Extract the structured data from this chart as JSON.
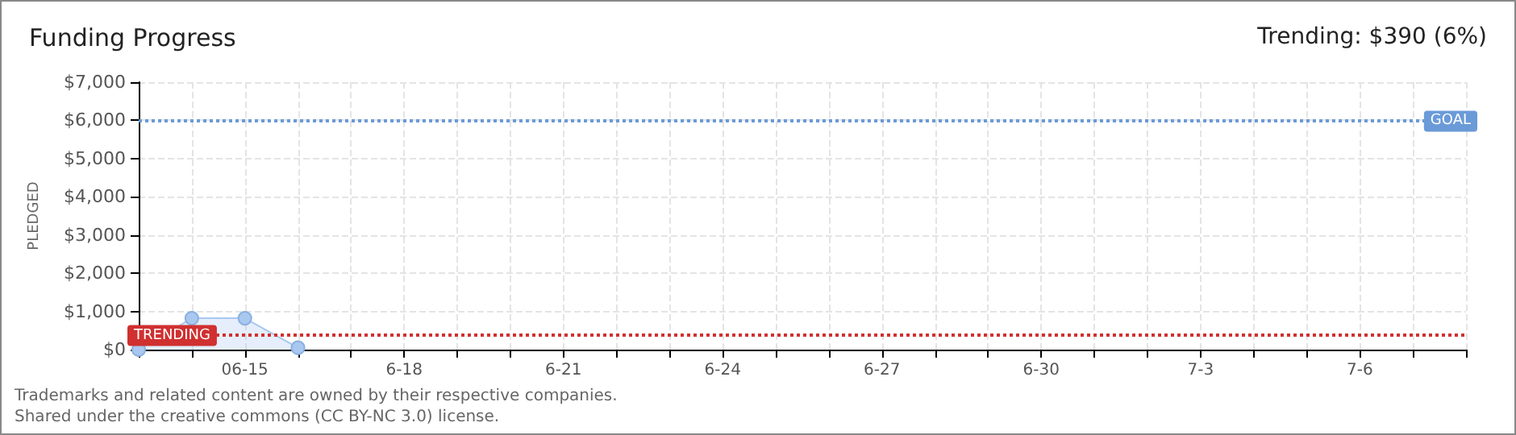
{
  "chart_data": {
    "type": "area",
    "title": "Funding Progress",
    "subtitle": "Trending: $390 (6%)",
    "ylabel": "PLEDGED",
    "x": [
      "--06-13",
      "--06-14",
      "--06-15",
      "--06-16"
    ],
    "series": [
      {
        "color": "#a8c8f0",
        "values": [
          0,
          820,
          820,
          50
        ]
      }
    ],
    "marker": "circle",
    "grid": true,
    "xlim": [
      "--06-13",
      "--07-08"
    ],
    "xticks": [
      {
        "value": "--06-13",
        "label": null
      },
      {
        "value": "--06-14",
        "label": null
      },
      {
        "value": "--06-15",
        "label": "06-15"
      },
      {
        "value": "--06-16",
        "label": null
      },
      {
        "value": "--06-17",
        "label": null
      },
      {
        "value": "--06-18",
        "label": "6-18"
      },
      {
        "value": "--06-19",
        "label": null
      },
      {
        "value": "--06-20",
        "label": null
      },
      {
        "value": "--06-21",
        "label": "6-21"
      },
      {
        "value": "--06-22",
        "label": null
      },
      {
        "value": "--06-23",
        "label": null
      },
      {
        "value": "--06-24",
        "label": "6-24"
      },
      {
        "value": "--06-25",
        "label": null
      },
      {
        "value": "--06-26",
        "label": null
      },
      {
        "value": "--06-27",
        "label": "6-27"
      },
      {
        "value": "--06-28",
        "label": null
      },
      {
        "value": "--06-29",
        "label": null
      },
      {
        "value": "--06-30",
        "label": "6-30"
      },
      {
        "value": "--07-01",
        "label": null
      },
      {
        "value": "--07-02",
        "label": null
      },
      {
        "value": "--07-03",
        "label": "7-3"
      },
      {
        "value": "--07-04",
        "label": null
      },
      {
        "value": "--07-05",
        "label": null
      },
      {
        "value": "--07-06",
        "label": "7-6"
      },
      {
        "value": "--07-07",
        "label": null
      },
      {
        "value": "--07-08",
        "label": null
      }
    ],
    "ylim": [
      0,
      7000
    ],
    "yticks": [
      {
        "value": 0,
        "label": "$0"
      },
      {
        "value": 1000,
        "label": "$1,000"
      },
      {
        "value": 2000,
        "label": "$2,000"
      },
      {
        "value": 3000,
        "label": "$3,000"
      },
      {
        "value": 4000,
        "label": "$4,000"
      },
      {
        "value": 5000,
        "label": "$5,000"
      },
      {
        "value": 6000,
        "label": "$6,000"
      },
      {
        "value": 7000,
        "label": "$7,000"
      }
    ],
    "ref_lines": [
      {
        "axis": "y",
        "value": 6000,
        "label": "GOAL",
        "color": "#6a9ad8",
        "line_style": "dotted"
      },
      {
        "axis": "y",
        "value": 390,
        "label": "TRENDING",
        "color": "#d03030",
        "line_style": "dotted"
      }
    ],
    "annotations": [
      "Trademarks and related content are owned by their respective companies.",
      "Shared under the creative commons (CC BY-NC 3.0) license."
    ]
  }
}
